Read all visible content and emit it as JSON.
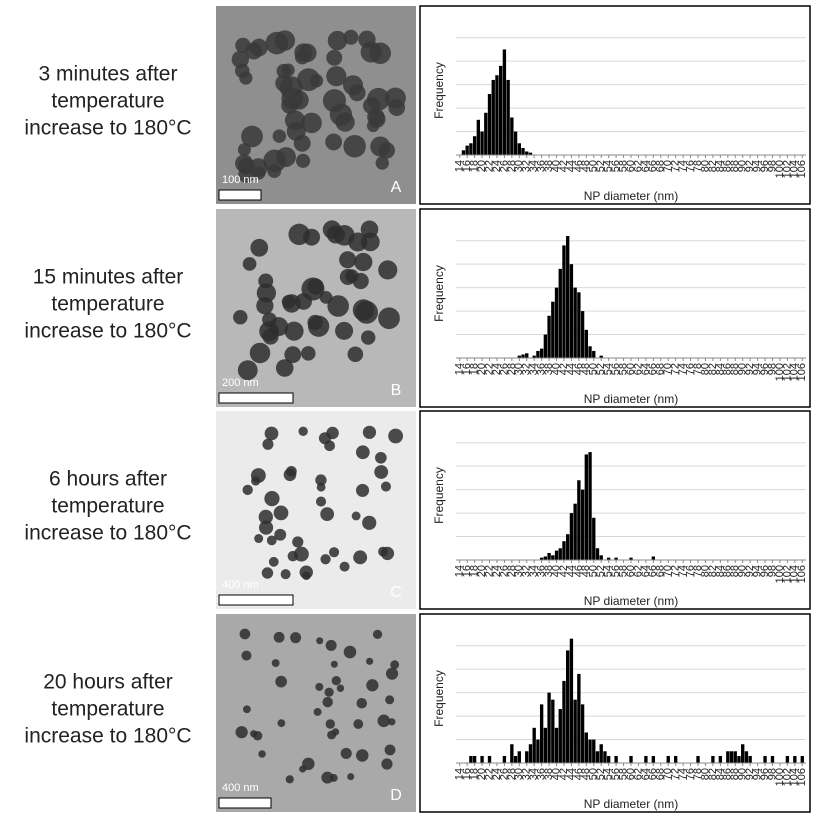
{
  "rows": [
    {
      "lines": [
        "3 minutes after",
        "temperature",
        "increase to 180°C"
      ],
      "scale_bar": "100 nm",
      "letter": "A"
    },
    {
      "lines": [
        "15 minutes after",
        "temperature",
        "increase to 180°C"
      ],
      "scale_bar": "200 nm",
      "letter": "B"
    },
    {
      "lines": [
        "6 hours after",
        "temperature",
        "increase to 180°C"
      ],
      "scale_bar": "400 nm",
      "letter": "C"
    },
    {
      "lines": [
        "20 hours after",
        "temperature",
        "increase to 180°C"
      ],
      "scale_bar": "400 nm",
      "letter": "D"
    }
  ],
  "chart_data": [
    {
      "type": "bar",
      "xlabel": "NP diameter (nm)",
      "ylabel": "Frequency",
      "color": "#000000",
      "grid": true,
      "xlim": [
        13,
        107
      ],
      "xticks": [
        14,
        16,
        18,
        20,
        22,
        24,
        26,
        28,
        30,
        32,
        34,
        36,
        38,
        40,
        42,
        44,
        46,
        48,
        50,
        52,
        54,
        56,
        58,
        60,
        62,
        64,
        66,
        68,
        70,
        72,
        74,
        76,
        78,
        80,
        82,
        84,
        86,
        88,
        90,
        92,
        94,
        96,
        98,
        100,
        102,
        104,
        106
      ],
      "ylim": [
        0,
        5.5
      ],
      "yticks": [
        0,
        1,
        2,
        3,
        4,
        5
      ],
      "x": [
        15,
        16,
        17,
        18,
        19,
        20,
        21,
        22,
        23,
        24,
        25,
        26,
        27,
        28,
        29,
        30,
        31,
        32,
        33
      ],
      "values": [
        0.2,
        0.4,
        0.5,
        0.8,
        1.5,
        1.0,
        1.8,
        2.6,
        3.2,
        3.4,
        3.8,
        4.5,
        3.2,
        1.6,
        1.0,
        0.5,
        0.3,
        0.15,
        0.1
      ]
    },
    {
      "type": "bar",
      "xlabel": "NP diameter (nm)",
      "ylabel": "Frequency",
      "color": "#000000",
      "grid": true,
      "xlim": [
        13,
        107
      ],
      "xticks": [
        14,
        16,
        18,
        20,
        22,
        24,
        26,
        28,
        30,
        32,
        34,
        36,
        38,
        40,
        42,
        44,
        46,
        48,
        50,
        52,
        54,
        56,
        58,
        60,
        62,
        64,
        66,
        68,
        70,
        72,
        74,
        76,
        78,
        80,
        82,
        84,
        86,
        88,
        90,
        92,
        94,
        96,
        98,
        100,
        102,
        104,
        106
      ],
      "ylim": [
        0,
        5.5
      ],
      "yticks": [
        0,
        1,
        2,
        3,
        4,
        5
      ],
      "x": [
        30,
        31,
        32,
        34,
        35,
        36,
        37,
        38,
        39,
        40,
        41,
        42,
        43,
        44,
        45,
        46,
        47,
        48,
        49,
        50,
        52
      ],
      "values": [
        0.1,
        0.15,
        0.2,
        0.1,
        0.3,
        0.4,
        1.0,
        1.8,
        2.4,
        3.0,
        3.8,
        4.8,
        5.2,
        4.0,
        3.0,
        2.8,
        2.0,
        1.2,
        0.5,
        0.3,
        0.1
      ]
    },
    {
      "type": "bar",
      "xlabel": "NP diameter (nm)",
      "ylabel": "Frequency",
      "color": "#000000",
      "grid": true,
      "xlim": [
        13,
        107
      ],
      "xticks": [
        14,
        16,
        18,
        20,
        22,
        24,
        26,
        28,
        30,
        32,
        34,
        36,
        38,
        40,
        42,
        44,
        46,
        48,
        50,
        52,
        54,
        56,
        58,
        60,
        62,
        64,
        66,
        68,
        70,
        72,
        74,
        76,
        78,
        80,
        82,
        84,
        86,
        88,
        90,
        92,
        94,
        96,
        98,
        100,
        102,
        104,
        106
      ],
      "ylim": [
        0,
        5.5
      ],
      "yticks": [
        0,
        1,
        2,
        3,
        4,
        5
      ],
      "x": [
        36,
        37,
        38,
        39,
        40,
        41,
        42,
        43,
        44,
        45,
        46,
        47,
        48,
        49,
        50,
        51,
        52,
        54,
        56,
        60,
        66
      ],
      "values": [
        0.1,
        0.15,
        0.3,
        0.2,
        0.4,
        0.5,
        0.8,
        1.1,
        2.0,
        2.4,
        3.4,
        3.0,
        4.5,
        4.6,
        1.8,
        0.5,
        0.2,
        0.1,
        0.1,
        0.1,
        0.15
      ]
    },
    {
      "type": "bar",
      "xlabel": "NP diameter (nm)",
      "ylabel": "Frequency",
      "color": "#000000",
      "grid": true,
      "xlim": [
        13,
        107
      ],
      "xticks": [
        14,
        16,
        18,
        20,
        22,
        24,
        26,
        28,
        30,
        32,
        34,
        36,
        38,
        40,
        42,
        44,
        46,
        48,
        50,
        52,
        54,
        56,
        58,
        60,
        62,
        64,
        66,
        68,
        70,
        72,
        74,
        76,
        78,
        80,
        82,
        84,
        86,
        88,
        90,
        92,
        94,
        96,
        98,
        100,
        102,
        104,
        106
      ],
      "ylim": [
        0,
        5.5
      ],
      "yticks": [
        0,
        1,
        2,
        3,
        4,
        5
      ],
      "x": [
        17,
        18,
        20,
        22,
        26,
        28,
        29,
        30,
        32,
        33,
        34,
        35,
        36,
        37,
        38,
        39,
        40,
        41,
        42,
        43,
        44,
        45,
        46,
        47,
        48,
        49,
        50,
        51,
        52,
        53,
        54,
        56,
        60,
        64,
        66,
        70,
        72,
        78,
        82,
        84,
        86,
        87,
        88,
        89,
        90,
        91,
        92,
        96,
        98,
        102,
        104,
        106
      ],
      "values": [
        0.3,
        0.3,
        0.3,
        0.3,
        0.3,
        0.8,
        0.3,
        0.5,
        0.5,
        0.8,
        1.5,
        1.0,
        2.5,
        1.5,
        3.0,
        2.7,
        1.5,
        2.3,
        3.5,
        4.8,
        5.3,
        2.7,
        3.8,
        2.5,
        1.3,
        1.0,
        1.0,
        0.5,
        0.8,
        0.5,
        0.3,
        0.3,
        0.3,
        0.3,
        0.3,
        0.3,
        0.3,
        0.3,
        0.3,
        0.3,
        0.5,
        0.5,
        0.5,
        0.3,
        0.8,
        0.5,
        0.3,
        0.3,
        0.3,
        0.3,
        0.3,
        0.3
      ]
    }
  ]
}
